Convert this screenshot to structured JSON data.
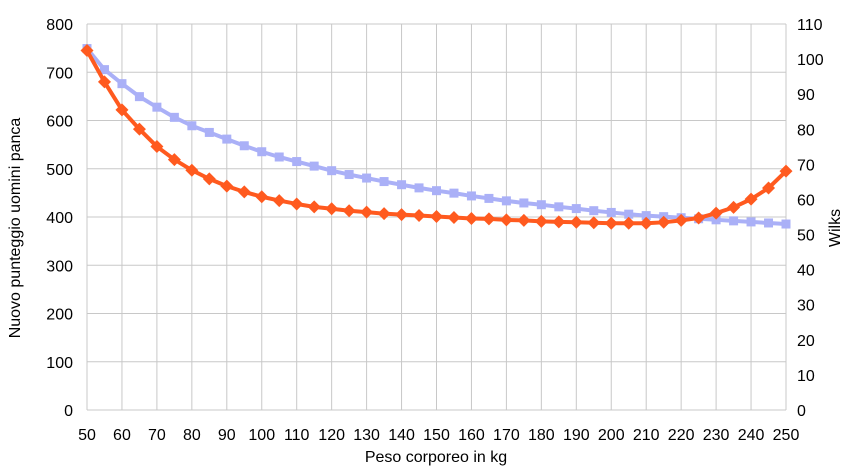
{
  "chart_data": {
    "type": "line",
    "title": "",
    "xlabel": "Peso corporeo in kg",
    "ylabel": "Nuovo punteggio uomini panca",
    "y2label": "Wilks",
    "xlim": [
      50,
      250
    ],
    "ylim": [
      0,
      800
    ],
    "y2lim": [
      0,
      110
    ],
    "grid": true,
    "legend": "none",
    "x": [
      50,
      55,
      60,
      65,
      70,
      75,
      80,
      85,
      90,
      95,
      100,
      105,
      110,
      115,
      120,
      125,
      130,
      135,
      140,
      145,
      150,
      155,
      160,
      165,
      170,
      175,
      180,
      185,
      190,
      195,
      200,
      205,
      210,
      215,
      220,
      225,
      230,
      235,
      240,
      245,
      250
    ],
    "x_ticks": [
      "50",
      "60",
      "70",
      "80",
      "90",
      "100",
      "110",
      "120",
      "130",
      "140",
      "150",
      "160",
      "170",
      "180",
      "190",
      "200",
      "210",
      "220",
      "230",
      "240",
      "250"
    ],
    "y_ticks": [
      "0",
      "100",
      "200",
      "300",
      "400",
      "500",
      "600",
      "700",
      "800"
    ],
    "y2_ticks": [
      "0",
      "10",
      "20",
      "30",
      "40",
      "50",
      "60",
      "70",
      "80",
      "90",
      "100",
      "110"
    ],
    "series": [
      {
        "axis": "left",
        "color": "#ff5a1f",
        "marker": "diamond",
        "values": [
          745,
          680,
          622,
          582,
          546,
          519,
          497,
          479,
          464,
          452,
          442,
          434,
          427,
          421,
          417,
          413,
          410,
          407,
          405,
          403,
          401,
          399,
          397,
          396,
          394,
          393,
          391,
          390,
          389,
          388,
          387,
          387,
          387,
          389,
          393,
          398,
          408,
          420,
          437,
          460,
          495
        ]
      },
      {
        "axis": "right",
        "color": "#aab0f7",
        "marker": "square",
        "values": [
          103,
          97,
          93,
          89.3,
          86.3,
          83.4,
          81,
          79.1,
          77.2,
          75.3,
          73.6,
          72.1,
          70.8,
          69.5,
          68.2,
          67.1,
          66.1,
          65.1,
          64.2,
          63.3,
          62.5,
          61.8,
          61,
          60.3,
          59.6,
          59,
          58.5,
          57.9,
          57.4,
          56.8,
          56.3,
          55.8,
          55.4,
          55.1,
          54.8,
          54.5,
          54.2,
          53.9,
          53.6,
          53.3,
          53
        ]
      }
    ]
  }
}
